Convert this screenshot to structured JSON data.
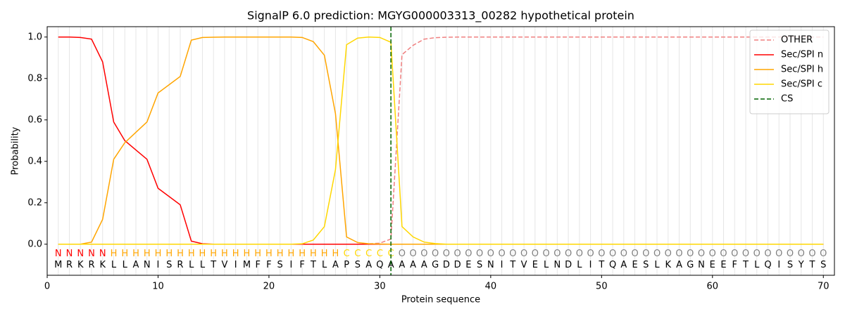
{
  "chart_data": {
    "type": "line",
    "title": "SignalP 6.0 prediction: MGYG000003313_00282 hypothetical protein",
    "x_label": "Protein sequence",
    "y_label": "Probability",
    "x": [
      1,
      2,
      3,
      4,
      5,
      6,
      7,
      8,
      9,
      10,
      11,
      12,
      13,
      14,
      15,
      16,
      17,
      18,
      19,
      20,
      21,
      22,
      23,
      24,
      25,
      26,
      27,
      28,
      29,
      30,
      31,
      32,
      33,
      34,
      35,
      36,
      37,
      38,
      39,
      40,
      41,
      42,
      43,
      44,
      45,
      46,
      47,
      48,
      49,
      50,
      51,
      52,
      53,
      54,
      55,
      56,
      57,
      58,
      59,
      60,
      61,
      62,
      63,
      64,
      65,
      66,
      67,
      68,
      69,
      70
    ],
    "series": [
      {
        "name": "OTHER",
        "color": "#f08080",
        "dashed": true,
        "values": [
          0,
          0,
          0,
          0,
          0,
          0,
          0,
          0,
          0,
          0,
          0,
          0,
          0,
          0,
          0,
          0,
          0,
          0,
          0,
          0,
          0,
          0,
          0,
          0,
          0,
          0,
          0,
          0,
          0.002,
          0.005,
          0.025,
          0.915,
          0.96,
          0.99,
          0.997,
          0.999,
          1,
          1,
          1,
          1,
          1,
          1,
          1,
          1,
          1,
          1,
          1,
          1,
          1,
          1,
          1,
          1,
          1,
          1,
          1,
          1,
          1,
          1,
          1,
          1,
          1,
          1,
          1,
          1,
          1,
          1,
          1,
          1,
          1,
          1
        ]
      },
      {
        "name": "Sec/SPI n",
        "color": "#ff0000",
        "dashed": false,
        "values": [
          1,
          1,
          0.998,
          0.99,
          0.88,
          0.59,
          0.5,
          0.455,
          0.41,
          0.27,
          0.23,
          0.19,
          0.015,
          0.002,
          0,
          0,
          0,
          0,
          0,
          0,
          0,
          0,
          0,
          0,
          0,
          0,
          0,
          0,
          0,
          0,
          0,
          0,
          0,
          0,
          0,
          0,
          0,
          0,
          0,
          0,
          0,
          0,
          0,
          0,
          0,
          0,
          0,
          0,
          0,
          0,
          0,
          0,
          0,
          0,
          0,
          0,
          0,
          0,
          0,
          0,
          0,
          0,
          0,
          0,
          0,
          0,
          0,
          0,
          0,
          0
        ]
      },
      {
        "name": "Sec/SPI h",
        "color": "#ffa500",
        "dashed": false,
        "values": [
          0,
          0,
          0,
          0.01,
          0.12,
          0.41,
          0.49,
          0.54,
          0.59,
          0.73,
          0.77,
          0.81,
          0.985,
          0.998,
          0.999,
          1,
          1,
          1,
          1,
          1,
          1,
          1,
          0.998,
          0.978,
          0.912,
          0.63,
          0.035,
          0.008,
          0.002,
          0.001,
          0,
          0,
          0,
          0,
          0,
          0,
          0,
          0,
          0,
          0,
          0,
          0,
          0,
          0,
          0,
          0,
          0,
          0,
          0,
          0,
          0,
          0,
          0,
          0,
          0,
          0,
          0,
          0,
          0,
          0,
          0,
          0,
          0,
          0,
          0,
          0,
          0,
          0,
          0,
          0
        ]
      },
      {
        "name": "Sec/SPI c",
        "color": "#ffd700",
        "dashed": false,
        "values": [
          0,
          0,
          0,
          0,
          0,
          0,
          0,
          0,
          0,
          0,
          0,
          0,
          0,
          0,
          0,
          0,
          0,
          0,
          0,
          0,
          0,
          0,
          0.002,
          0.02,
          0.085,
          0.36,
          0.963,
          0.995,
          1,
          0.998,
          0.975,
          0.085,
          0.035,
          0.01,
          0.003,
          0,
          0,
          0,
          0,
          0,
          0,
          0,
          0,
          0,
          0,
          0,
          0,
          0,
          0,
          0,
          0,
          0,
          0,
          0,
          0,
          0,
          0,
          0,
          0,
          0,
          0,
          0,
          0,
          0,
          0,
          0,
          0,
          0,
          0,
          0
        ]
      }
    ],
    "vlines": [
      {
        "name": "CS",
        "x": 31,
        "color": "#006400"
      }
    ],
    "region_labels": [
      "N",
      "N",
      "N",
      "N",
      "N",
      "H",
      "H",
      "H",
      "H",
      "H",
      "H",
      "H",
      "H",
      "H",
      "H",
      "H",
      "H",
      "H",
      "H",
      "H",
      "H",
      "H",
      "H",
      "H",
      "H",
      "H",
      "C",
      "C",
      "C",
      "C",
      "C",
      "O",
      "O",
      "O",
      "O",
      "O",
      "O",
      "O",
      "O",
      "O",
      "O",
      "O",
      "O",
      "O",
      "O",
      "O",
      "O",
      "O",
      "O",
      "O",
      "O",
      "O",
      "O",
      "O",
      "O",
      "O",
      "O",
      "O",
      "O",
      "O",
      "O",
      "O",
      "O",
      "O",
      "O",
      "O",
      "O",
      "O",
      "O",
      "O"
    ],
    "region_colors": {
      "N": "#ff0000",
      "H": "#ffa500",
      "C": "#ffd700",
      "O": "#808080"
    },
    "sequence": [
      "M",
      "R",
      "K",
      "R",
      "K",
      "L",
      "L",
      "A",
      "N",
      "I",
      "S",
      "R",
      "L",
      "L",
      "T",
      "V",
      "I",
      "M",
      "F",
      "F",
      "S",
      "I",
      "F",
      "T",
      "L",
      "A",
      "P",
      "S",
      "A",
      "Q",
      "A",
      "A",
      "A",
      "A",
      "G",
      "D",
      "D",
      "E",
      "S",
      "N",
      "I",
      "T",
      "V",
      "E",
      "L",
      "N",
      "D",
      "L",
      "I",
      "T",
      "Q",
      "A",
      "E",
      "S",
      "L",
      "K",
      "A",
      "G",
      "N",
      "E",
      "E",
      "F",
      "T",
      "L",
      "Q",
      "I",
      "S",
      "Y",
      "T",
      "S"
    ],
    "xlim": [
      0,
      71
    ],
    "ylim": [
      -0.15,
      1.05
    ],
    "xticks": [
      0,
      10,
      20,
      30,
      40,
      50,
      60,
      70
    ],
    "yticks": [
      {
        "value": 0,
        "label": "0.0"
      },
      0.2,
      0.4,
      0.6,
      0.8,
      {
        "value": 1,
        "label": "1.0"
      }
    ],
    "grid": true,
    "legend": "upper right"
  }
}
